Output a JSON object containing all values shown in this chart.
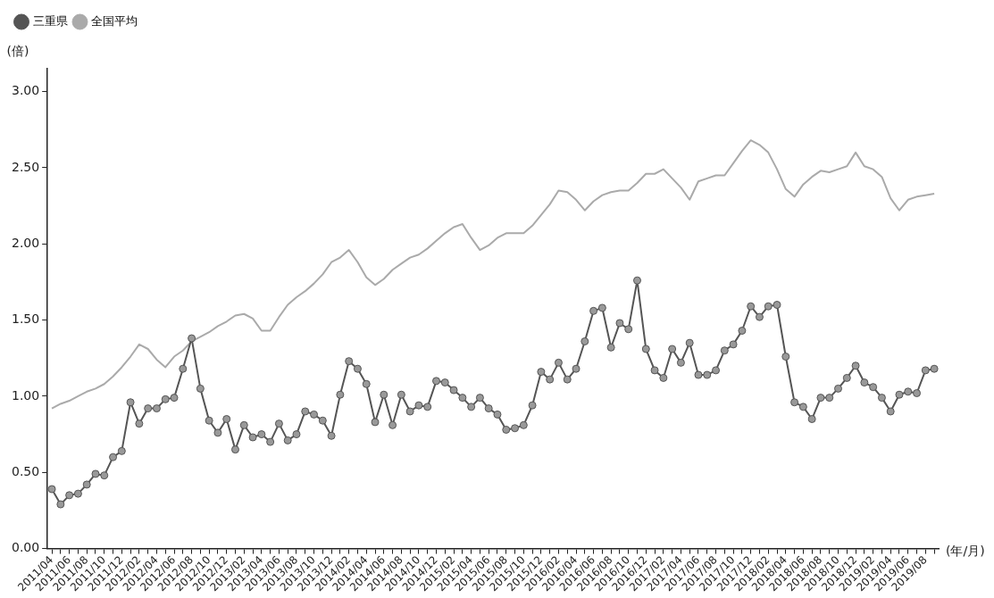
{
  "chart_data": {
    "type": "line",
    "xlabel": "(年/月)",
    "ylabel": "(倍)",
    "categories": [
      "2011/04",
      null,
      "2011/06",
      null,
      "2011/08",
      null,
      "2011/10",
      null,
      "2011/12",
      null,
      "2012/02",
      null,
      "2012/04",
      null,
      "2012/06",
      null,
      "2012/08",
      null,
      "2012/10",
      null,
      "2012/12",
      null,
      "2013/02",
      null,
      "2013/04",
      null,
      "2013/06",
      null,
      "2013/08",
      null,
      "2013/10",
      null,
      "2013/12",
      null,
      "2014/02",
      null,
      "2014/04",
      null,
      "2014/06",
      null,
      "2014/08",
      null,
      "2014/10",
      null,
      "2014/12",
      null,
      "2015/02",
      null,
      "2015/04",
      null,
      "2015/06",
      null,
      "2015/08",
      null,
      "2015/10",
      null,
      "2015/12",
      null,
      "2016/02",
      null,
      "2016/04",
      null,
      "2016/06",
      null,
      "2016/08",
      null,
      "2016/10",
      null,
      "2016/12",
      null,
      "2017/02",
      null,
      "2017/04",
      null,
      "2017/06",
      null,
      "2017/08",
      null,
      "2017/10",
      null,
      "2017/12",
      null,
      "2018/02",
      null,
      "2018/04",
      null,
      "2018/06",
      null,
      "2018/08",
      null,
      "2018/10",
      null,
      "2018/12",
      null,
      "2019/02",
      null,
      "2019/04",
      null,
      "2019/06",
      null,
      "2019/08",
      null
    ],
    "series": [
      {
        "name": "三重県",
        "color": "#555555",
        "marker": "circle",
        "values": [
          0.39,
          0.29,
          0.35,
          0.36,
          0.42,
          0.49,
          0.48,
          0.6,
          0.64,
          0.96,
          0.82,
          0.92,
          0.92,
          0.98,
          0.99,
          1.18,
          1.38,
          1.05,
          0.84,
          0.76,
          0.85,
          0.65,
          0.81,
          0.73,
          0.75,
          0.7,
          0.82,
          0.71,
          0.75,
          0.9,
          0.88,
          0.84,
          0.74,
          1.01,
          1.23,
          1.18,
          1.08,
          0.83,
          1.01,
          0.81,
          1.01,
          0.9,
          0.94,
          0.93,
          1.1,
          1.09,
          1.04,
          0.99,
          0.93,
          0.99,
          0.92,
          0.88,
          0.78,
          0.79,
          0.81,
          0.94,
          1.16,
          1.11,
          1.22,
          1.11,
          1.18,
          1.36,
          1.56,
          1.58,
          1.32,
          1.48,
          1.44,
          1.76,
          1.31,
          1.17,
          1.12,
          1.31,
          1.22,
          1.35,
          1.14,
          1.14,
          1.17,
          1.3,
          1.34,
          1.43,
          1.59,
          1.52,
          1.59,
          1.6,
          1.26,
          0.96,
          0.93,
          0.85,
          0.99,
          0.99,
          1.05,
          1.12,
          1.2,
          1.09,
          1.06,
          0.99,
          0.9,
          1.01,
          1.03,
          1.02,
          1.17,
          1.18
        ]
      },
      {
        "name": "全国平均",
        "color": "#aaaaaa",
        "marker": "none",
        "values": [
          0.92,
          0.95,
          0.97,
          1.0,
          1.03,
          1.05,
          1.08,
          1.13,
          1.19,
          1.26,
          1.34,
          1.31,
          1.24,
          1.19,
          1.26,
          1.3,
          1.36,
          1.39,
          1.42,
          1.46,
          1.49,
          1.53,
          1.54,
          1.51,
          1.43,
          1.43,
          1.52,
          1.6,
          1.65,
          1.69,
          1.74,
          1.8,
          1.88,
          1.91,
          1.96,
          1.88,
          1.78,
          1.73,
          1.77,
          1.83,
          1.87,
          1.91,
          1.93,
          1.97,
          2.02,
          2.07,
          2.11,
          2.13,
          2.04,
          1.96,
          1.99,
          2.04,
          2.07,
          2.07,
          2.07,
          2.12,
          2.19,
          2.26,
          2.35,
          2.34,
          2.29,
          2.22,
          2.28,
          2.32,
          2.34,
          2.35,
          2.35,
          2.4,
          2.46,
          2.46,
          2.49,
          2.43,
          2.37,
          2.29,
          2.41,
          2.43,
          2.45,
          2.45,
          2.53,
          2.61,
          2.68,
          2.65,
          2.6,
          2.49,
          2.36,
          2.31,
          2.39,
          2.44,
          2.48,
          2.47,
          2.49,
          2.51,
          2.6,
          2.51,
          2.49,
          2.44,
          2.3,
          2.22,
          2.29,
          2.31,
          2.32,
          2.33
        ]
      }
    ],
    "ylim": [
      0,
      3.15
    ],
    "yticks": [
      {
        "value": 0,
        "label": "0.00"
      },
      {
        "value": 0.5,
        "label": "0.50"
      },
      {
        "value": 1,
        "label": "1.00"
      },
      {
        "value": 1.5,
        "label": "1.50"
      },
      {
        "value": 2,
        "label": "2.00"
      },
      {
        "value": 2.5,
        "label": "2.50"
      },
      {
        "value": 3,
        "label": "3.00"
      }
    ],
    "grid": false,
    "legend": "top left",
    "line_style": "solid"
  }
}
